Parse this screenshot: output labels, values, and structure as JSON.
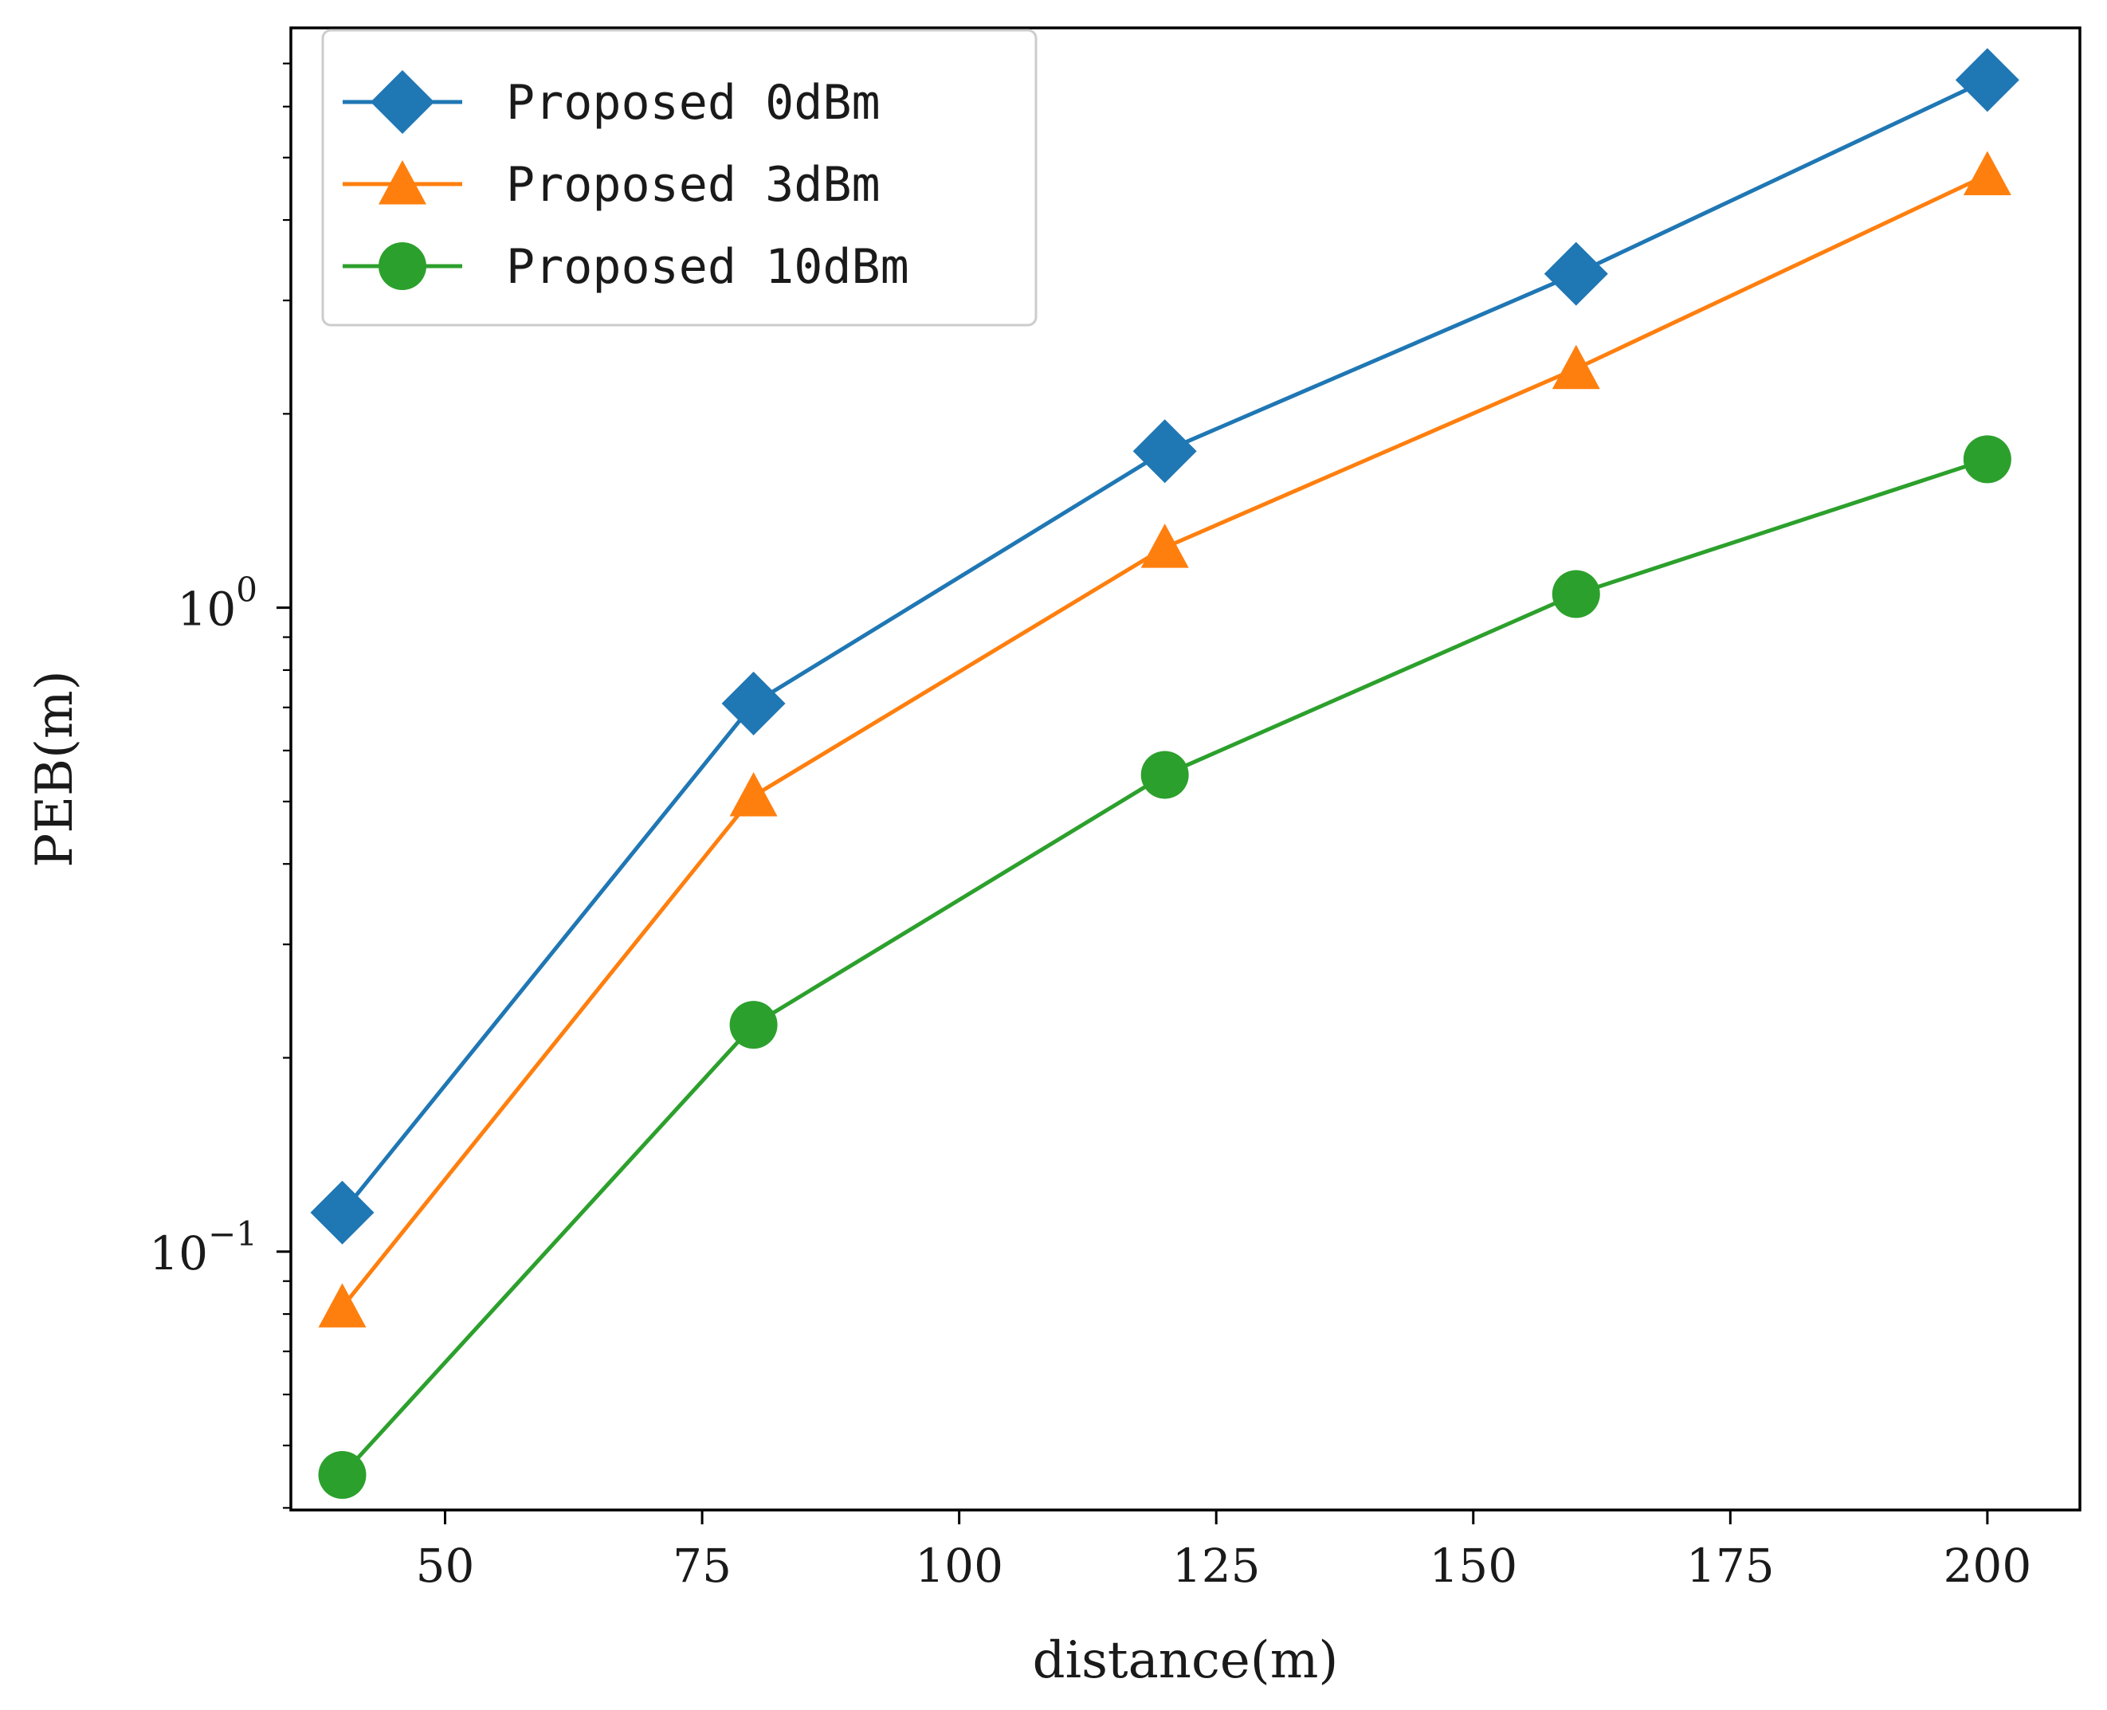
{
  "chart_data": {
    "type": "line",
    "title": "",
    "xlabel": "distance(m)",
    "ylabel": "PEB(m)",
    "xscale": "linear",
    "yscale": "log",
    "xlim": [
      35,
      209
    ],
    "ylim": [
      0.0397,
      7.95
    ],
    "x": [
      40,
      80,
      120,
      160,
      200
    ],
    "xticks": [
      50,
      75,
      100,
      125,
      150,
      175,
      200
    ],
    "xtick_labels": [
      "50",
      "75",
      "100",
      "125",
      "150",
      "175",
      "200"
    ],
    "ytick_major": [
      0.1,
      1
    ],
    "ytick_labels": [
      {
        "base": "10",
        "exp": "−1"
      },
      {
        "base": "10",
        "exp": "0"
      }
    ],
    "grid": false,
    "legend_position": "upper-left",
    "series": [
      {
        "name": "Proposed 0dBm",
        "color": "#1f77b4",
        "marker": "diamond",
        "values": [
          0.115,
          0.71,
          1.75,
          3.3,
          6.6
        ]
      },
      {
        "name": "Proposed 3dBm",
        "color": "#ff7f0e",
        "marker": "triangle",
        "values": [
          0.082,
          0.51,
          1.24,
          2.35,
          4.7
        ]
      },
      {
        "name": "Proposed 10dBm",
        "color": "#2ca02c",
        "marker": "circle",
        "values": [
          0.045,
          0.225,
          0.55,
          1.05,
          1.7
        ]
      }
    ]
  }
}
